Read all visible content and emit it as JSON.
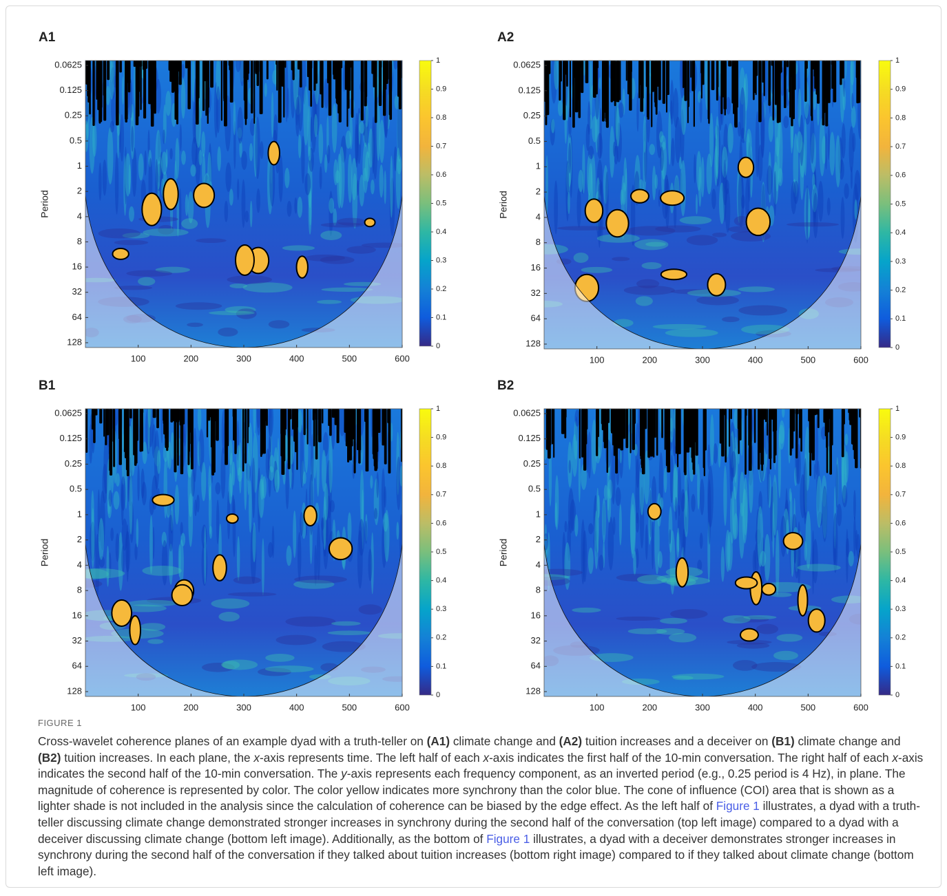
{
  "chart_data": [
    {
      "type": "heatmap",
      "title": "A1",
      "ylabel": "Period",
      "xlim": [
        0,
        600
      ],
      "xticks": [
        100,
        200,
        300,
        400,
        500,
        600
      ],
      "ylim": [
        0.0625,
        128
      ],
      "ylog": true,
      "yinverted": true,
      "yticks": [
        0.0625,
        0.125,
        0.25,
        0.5,
        1,
        2,
        4,
        8,
        16,
        32,
        64,
        128
      ],
      "colorbar": {
        "lim": [
          0,
          1
        ],
        "ticks": [
          0,
          0.1,
          0.2,
          0.3,
          0.4,
          0.5,
          0.6,
          0.7,
          0.8,
          0.9,
          1
        ]
      }
    },
    {
      "type": "heatmap",
      "title": "A2",
      "ylabel": "Period",
      "xlim": [
        0,
        600
      ],
      "xticks": [
        100,
        200,
        300,
        400,
        500,
        600
      ],
      "ylim": [
        0.0625,
        128
      ],
      "ylog": true,
      "yinverted": true,
      "yticks": [
        0.0625,
        0.125,
        0.25,
        0.5,
        1,
        2,
        4,
        8,
        16,
        32,
        64,
        128
      ],
      "colorbar": {
        "lim": [
          0,
          1
        ],
        "ticks": [
          0,
          0.1,
          0.2,
          0.3,
          0.4,
          0.5,
          0.6,
          0.7,
          0.8,
          0.9,
          1
        ]
      }
    },
    {
      "type": "heatmap",
      "title": "B1",
      "ylabel": "Period",
      "xlim": [
        0,
        600
      ],
      "xticks": [
        100,
        200,
        300,
        400,
        500,
        600
      ],
      "ylim": [
        0.0625,
        128
      ],
      "ylog": true,
      "yinverted": true,
      "yticks": [
        0.0625,
        0.125,
        0.25,
        0.5,
        1,
        2,
        4,
        8,
        16,
        32,
        64,
        128
      ],
      "colorbar": {
        "lim": [
          0,
          1
        ],
        "ticks": [
          0,
          0.1,
          0.2,
          0.3,
          0.4,
          0.5,
          0.6,
          0.7,
          0.8,
          0.9,
          1
        ]
      }
    },
    {
      "type": "heatmap",
      "title": "B2",
      "ylabel": "Period",
      "xlim": [
        0,
        600
      ],
      "xticks": [
        100,
        200,
        300,
        400,
        500,
        600
      ],
      "ylim": [
        0.0625,
        128
      ],
      "ylog": true,
      "yinverted": true,
      "yticks": [
        0.0625,
        0.125,
        0.25,
        0.5,
        1,
        2,
        4,
        8,
        16,
        32,
        64,
        128
      ],
      "colorbar": {
        "lim": [
          0,
          1
        ],
        "ticks": [
          0,
          0.1,
          0.2,
          0.3,
          0.4,
          0.5,
          0.6,
          0.7,
          0.8,
          0.9,
          1
        ]
      }
    }
  ],
  "caption": {
    "label": "FIGURE 1",
    "text": [
      "Cross-wavelet coherence planes of an example dyad with a truth-teller on ",
      "(A1)",
      " climate change and ",
      "(A2)",
      " tuition increases and a deceiver on ",
      "(B1)",
      " climate change and ",
      "(B2)",
      " tuition increases. In each plane, the ",
      "x",
      "-axis represents time. The left half of each ",
      "x",
      "-axis indicates the first half of the 10-min conversation. The right half of each ",
      "x",
      "-axis indicates the second half of the 10-min conversation. The ",
      "y",
      "-axis represents each frequency component, as an inverted period (e.g., 0.25 period is 4 Hz), in plane. The magnitude of coherence is represented by color. The color yellow indicates more synchrony than the color blue. The cone of influence (COI) area that is shown as a lighter shade is not included in the analysis since the calculation of coherence can be biased by the edge effect. As the left half of ",
      "Figure 1",
      " illustrates, a dyad with a truth-teller discussing climate change demonstrated stronger increases in synchrony during the second half of the conversation (top left image) compared to a dyad with a deceiver discussing climate change (bottom left image). Additionally, as the bottom of ",
      "Figure 1",
      " illustrates, a dyad with a deceiver demonstrates stronger increases in synchrony during the second half of the conversation if they talked about tuition increases (bottom right image) compared to if they talked about climate change (bottom left image)."
    ]
  }
}
